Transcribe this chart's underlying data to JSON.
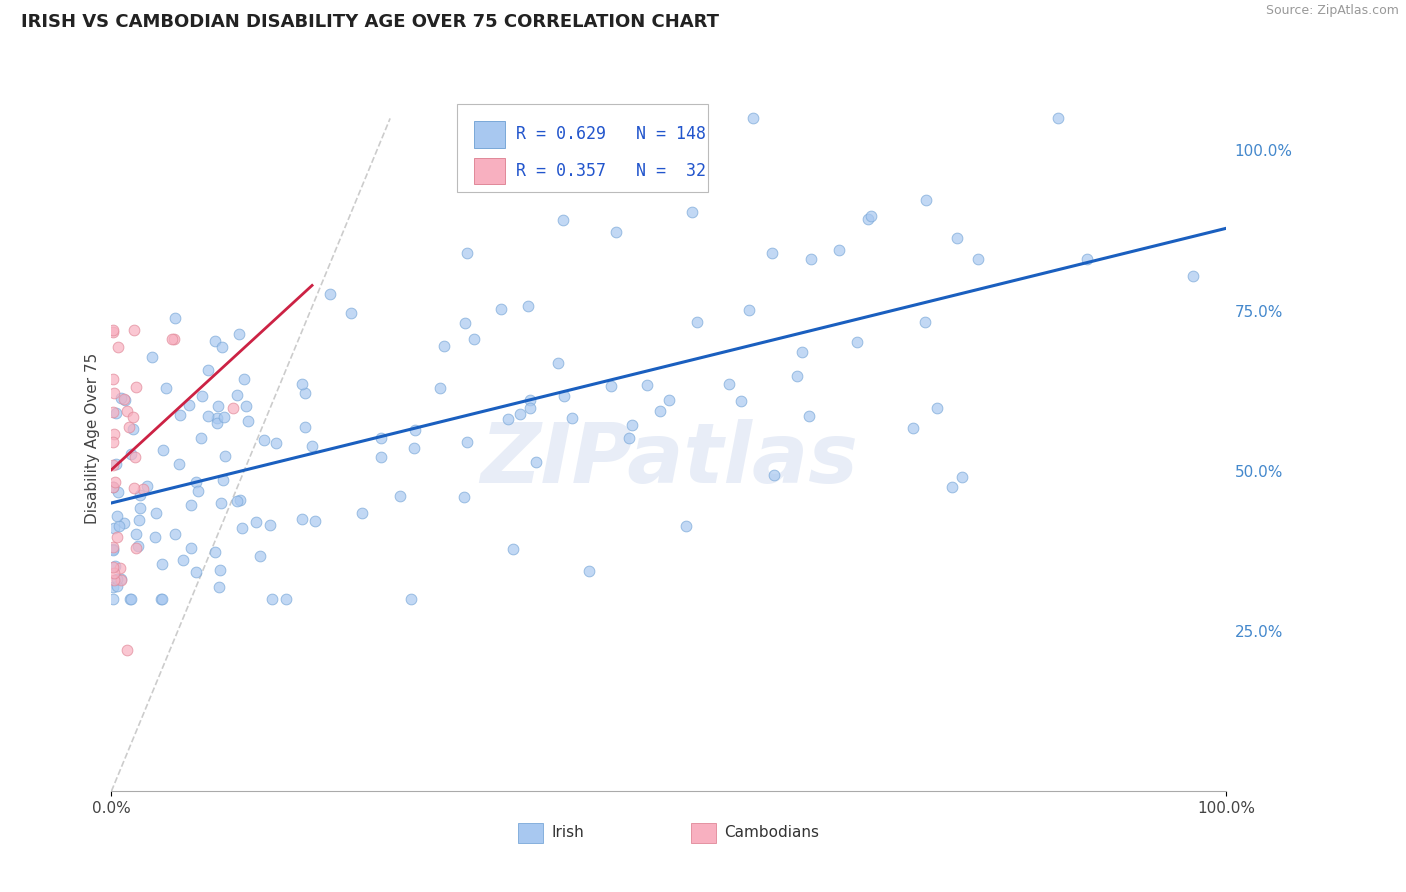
{
  "title": "IRISH VS CAMBODIAN DISABILITY AGE OVER 75 CORRELATION CHART",
  "source_text": "Source: ZipAtlas.com",
  "ylabel": "Disability Age Over 75",
  "xlim": [
    0.0,
    1.0
  ],
  "ylim": [
    0.0,
    1.1
  ],
  "x_tick_labels": [
    "0.0%",
    "100.0%"
  ],
  "y_tick_labels": [
    "25.0%",
    "50.0%",
    "75.0%",
    "100.0%"
  ],
  "y_tick_positions": [
    0.25,
    0.5,
    0.75,
    1.0
  ],
  "irish_color": "#a8c8f0",
  "cambodian_color": "#f8b0c0",
  "irish_edge_color": "#7aa8d8",
  "cambodian_edge_color": "#e08898",
  "trend_irish_color": "#1a5fbf",
  "trend_cambodian_color": "#cc2244",
  "ref_line_color": "#cccccc",
  "irish_R": 0.629,
  "irish_N": 148,
  "cambodian_R": 0.357,
  "cambodian_N": 32,
  "legend_labels": [
    "Irish",
    "Cambodians"
  ],
  "watermark": "ZIPatlas",
  "marker_size": 60,
  "marker_alpha": 0.7,
  "grid_color": "#dddddd",
  "title_fontsize": 13,
  "tick_fontsize": 11,
  "ylabel_fontsize": 11,
  "legend_fontsize": 12,
  "source_fontsize": 9,
  "watermark_fontsize": 60,
  "watermark_color": "#ccd8ee",
  "watermark_alpha": 0.45
}
